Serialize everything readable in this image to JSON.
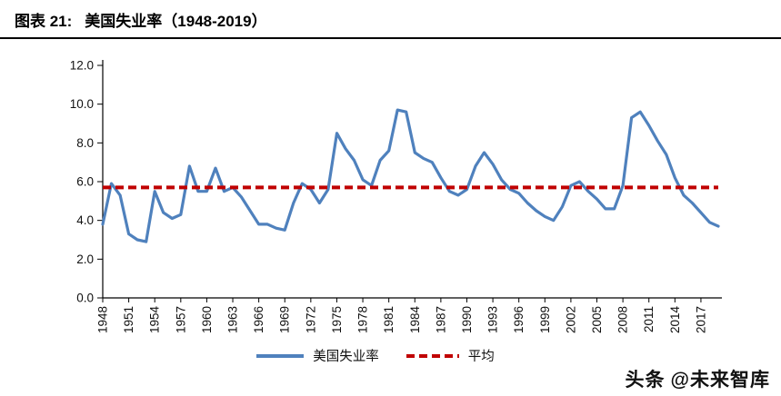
{
  "header": {
    "title_prefix": "图表 21:",
    "title_main": "美国失业率（1948-2019）"
  },
  "chart_data": {
    "type": "line",
    "title": "美国失业率（1948-2019）",
    "xlabel": "",
    "ylabel": "",
    "ylim": [
      0,
      12
    ],
    "ytick_step": 2,
    "grid": false,
    "legend_position": "bottom",
    "x": [
      1948,
      1949,
      1950,
      1951,
      1952,
      1953,
      1954,
      1955,
      1956,
      1957,
      1958,
      1959,
      1960,
      1961,
      1962,
      1963,
      1964,
      1965,
      1966,
      1967,
      1968,
      1969,
      1970,
      1971,
      1972,
      1973,
      1974,
      1975,
      1976,
      1977,
      1978,
      1979,
      1980,
      1981,
      1982,
      1983,
      1984,
      1985,
      1986,
      1987,
      1988,
      1989,
      1990,
      1991,
      1992,
      1993,
      1994,
      1995,
      1996,
      1997,
      1998,
      1999,
      2000,
      2001,
      2002,
      2003,
      2004,
      2005,
      2006,
      2007,
      2008,
      2009,
      2010,
      2011,
      2012,
      2013,
      2014,
      2015,
      2016,
      2017,
      2018,
      2019
    ],
    "series": [
      {
        "name": "美国失业率",
        "color": "#4F81BD",
        "values": [
          3.8,
          5.9,
          5.3,
          3.3,
          3.0,
          2.9,
          5.5,
          4.4,
          4.1,
          4.3,
          6.8,
          5.5,
          5.5,
          6.7,
          5.5,
          5.7,
          5.2,
          4.5,
          3.8,
          3.8,
          3.6,
          3.5,
          4.9,
          5.9,
          5.6,
          4.9,
          5.6,
          8.5,
          7.7,
          7.1,
          6.1,
          5.8,
          7.1,
          7.6,
          9.7,
          9.6,
          7.5,
          7.2,
          7.0,
          6.2,
          5.5,
          5.3,
          5.6,
          6.8,
          7.5,
          6.9,
          6.1,
          5.6,
          5.4,
          4.9,
          4.5,
          4.2,
          4.0,
          4.7,
          5.8,
          6.0,
          5.5,
          5.1,
          4.6,
          4.6,
          5.8,
          9.3,
          9.6,
          8.9,
          8.1,
          7.4,
          6.2,
          5.3,
          4.9,
          4.4,
          3.9,
          3.7
        ]
      }
    ],
    "average_line": {
      "label": "平均",
      "value": 5.7,
      "color": "#C00000",
      "style": "dashed"
    },
    "xtick_labels": [
      "1948",
      "1951",
      "1954",
      "1957",
      "1960",
      "1963",
      "1966",
      "1969",
      "1972",
      "1975",
      "1978",
      "1981",
      "1984",
      "1987",
      "1990",
      "1993",
      "1996",
      "1999",
      "2002",
      "2005",
      "2008",
      "2011",
      "2014",
      "2017"
    ],
    "ytick_labels": [
      "0.0",
      "2.0",
      "4.0",
      "6.0",
      "8.0",
      "10.0",
      "12.0"
    ]
  },
  "legend": {
    "series_label": "美国失业率",
    "average_label": "平均"
  },
  "watermark": {
    "brand": "头条",
    "handle": "@未来智库"
  }
}
